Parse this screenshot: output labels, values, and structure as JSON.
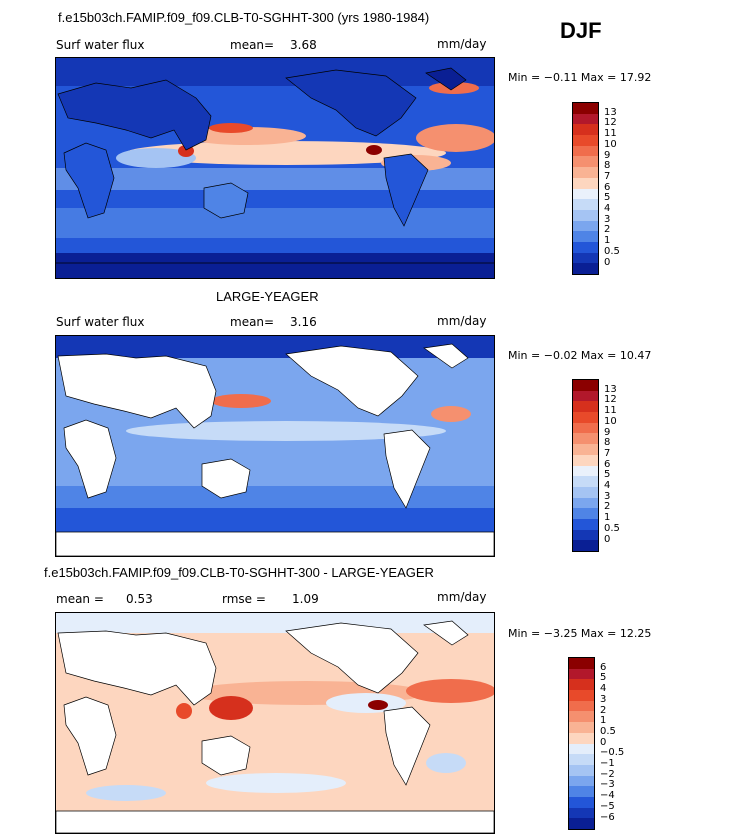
{
  "season": "DJF",
  "panel1": {
    "title": "f.e15b03ch.FAMIP.f09_f09.CLB-T0-SGHHT-300 (yrs 1980-1984)",
    "var_label": "Surf water flux",
    "mean_label": "mean=",
    "mean_value": "3.68",
    "units": "mm/day",
    "minmax": "Min =  −0.11  Max =  17.92"
  },
  "panel2": {
    "title": "LARGE-YEAGER",
    "var_label": "Surf water flux",
    "mean_label": "mean=",
    "mean_value": "3.16",
    "units": "mm/day",
    "minmax": "Min =  −0.02  Max =  10.47"
  },
  "panel3": {
    "title": "f.e15b03ch.FAMIP.f09_f09.CLB-T0-SGHHT-300 - LARGE-YEAGER",
    "mean_label": "mean =",
    "mean_value": "0.53",
    "rmse_label": "rmse =",
    "rmse_value": "1.09",
    "units": "mm/day",
    "minmax": "Min =  −3.25  Max =  12.25"
  },
  "colorbar_abs": {
    "labels": [
      "13",
      "12",
      "11",
      "10",
      "9",
      "8",
      "7",
      "6",
      "5",
      "4",
      "3",
      "2",
      "1",
      "0.5",
      "0"
    ],
    "colors": [
      "#8b0000",
      "#b2182b",
      "#d6301d",
      "#e84a2a",
      "#f06d4c",
      "#f5906f",
      "#f9b394",
      "#fdd6bf",
      "#eaf1fb",
      "#c6dbf7",
      "#a5c4f3",
      "#7ba6ee",
      "#4f84e6",
      "#2356d8",
      "#1437b5",
      "#0a1f94"
    ]
  },
  "colorbar_diff": {
    "labels": [
      "6",
      "5",
      "4",
      "3",
      "2",
      "1",
      "0.5",
      "0",
      "−0.5",
      "−1",
      "−2",
      "−3",
      "−4",
      "−5",
      "−6"
    ],
    "colors": [
      "#8b0000",
      "#b2182b",
      "#d6301d",
      "#e84a2a",
      "#f06d4c",
      "#f5906f",
      "#f9b394",
      "#fdd6bf",
      "#e4eefb",
      "#c6dbf7",
      "#a5c4f3",
      "#7ba6ee",
      "#4f84e6",
      "#2356d8",
      "#1437b5",
      "#0a1f94"
    ]
  }
}
